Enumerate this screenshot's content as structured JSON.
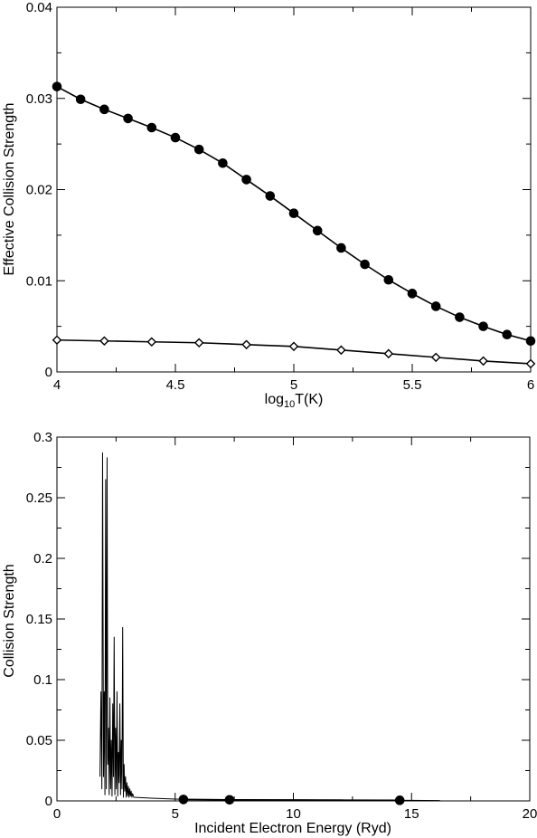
{
  "chart_data": [
    {
      "type": "line",
      "title": "",
      "xlabel": "log",
      "xlabel_sub": "10",
      "xlabel_suffix": "T(K)",
      "ylabel": "Effective Collision Strength",
      "xlim": [
        4,
        6
      ],
      "ylim": [
        0,
        0.04
      ],
      "x_ticks": [
        4,
        4.5,
        5,
        5.5,
        6
      ],
      "x_tick_labels": [
        "4",
        "4.5",
        "5",
        "5.5",
        "6"
      ],
      "y_ticks": [
        0,
        0.01,
        0.02,
        0.03,
        0.04
      ],
      "y_tick_labels": [
        "0",
        "0.01",
        "0.02",
        "0.03",
        "0.04"
      ],
      "grid": false,
      "series": [
        {
          "marker": "filled-circle",
          "x": [
            4.0,
            4.1,
            4.2,
            4.3,
            4.4,
            4.5,
            4.6,
            4.7,
            4.8,
            4.9,
            5.0,
            5.1,
            5.2,
            5.3,
            5.4,
            5.5,
            5.6,
            5.7,
            5.8,
            5.9,
            6.0
          ],
          "values": [
            0.0313,
            0.0299,
            0.0288,
            0.0278,
            0.0268,
            0.0257,
            0.0244,
            0.0229,
            0.0211,
            0.0193,
            0.0174,
            0.0155,
            0.0136,
            0.0118,
            0.0101,
            0.0086,
            0.0072,
            0.006,
            0.005,
            0.0041,
            0.0034
          ]
        },
        {
          "marker": "open-diamond",
          "x": [
            4.0,
            4.2,
            4.4,
            4.6,
            4.8,
            5.0,
            5.2,
            5.4,
            5.6,
            5.8,
            6.0
          ],
          "values": [
            0.0035,
            0.0034,
            0.0033,
            0.0032,
            0.003,
            0.0028,
            0.0024,
            0.002,
            0.0016,
            0.0012,
            0.0009
          ]
        }
      ]
    },
    {
      "type": "line",
      "title": "",
      "xlabel": "Incident Electron Energy (Ryd)",
      "ylabel": "Collision Strength",
      "xlim": [
        0,
        20
      ],
      "ylim": [
        0,
        0.3
      ],
      "x_ticks": [
        0,
        5,
        10,
        15,
        20
      ],
      "x_tick_labels": [
        "0",
        "5",
        "10",
        "15",
        "20"
      ],
      "y_ticks": [
        0,
        0.05,
        0.1,
        0.15,
        0.2,
        0.25,
        0.3
      ],
      "y_tick_labels": [
        "0",
        "0.05",
        "0.1",
        "0.15",
        "0.2",
        "0.25",
        "0.3"
      ],
      "grid": false,
      "series": [
        {
          "marker": "none",
          "x": [
            1.82,
            1.86,
            1.9,
            1.93,
            1.97,
            2.0,
            2.03,
            2.06,
            2.09,
            2.12,
            2.15,
            2.18,
            2.21,
            2.24,
            2.27,
            2.3,
            2.33,
            2.36,
            2.39,
            2.42,
            2.45,
            2.48,
            2.51,
            2.54,
            2.57,
            2.6,
            2.63,
            2.66,
            2.69,
            2.72,
            2.75,
            2.78,
            2.81,
            2.84,
            2.87,
            2.9,
            2.93,
            2.96,
            2.99,
            3.02,
            3.05,
            3.08,
            3.11,
            3.14,
            3.17,
            3.2,
            3.25,
            4.0,
            5.0,
            6.0,
            7.0,
            8.0,
            9.0,
            10.0,
            11.0,
            12.0,
            13.0,
            14.0,
            15.0,
            16.2
          ],
          "values": [
            0.02,
            0.09,
            0.01,
            0.287,
            0.02,
            0.09,
            0.005,
            0.265,
            0.01,
            0.283,
            0.03,
            0.06,
            0.005,
            0.085,
            0.01,
            0.05,
            0.004,
            0.08,
            0.02,
            0.135,
            0.005,
            0.06,
            0.01,
            0.09,
            0.004,
            0.04,
            0.015,
            0.08,
            0.005,
            0.05,
            0.01,
            0.143,
            0.003,
            0.03,
            0.008,
            0.02,
            0.003,
            0.015,
            0.004,
            0.012,
            0.003,
            0.01,
            0.004,
            0.008,
            0.003,
            0.006,
            0.003,
            0.0022,
            0.0015,
            0.0012,
            0.0011,
            0.001,
            0.0009,
            0.0009,
            0.0008,
            0.0008,
            0.0007,
            0.0006,
            0.0005,
            0.0003
          ]
        },
        {
          "marker": "filled-circle",
          "x": [
            5.35,
            7.3,
            14.5
          ],
          "values": [
            0.0012,
            0.0009,
            0.0005
          ]
        }
      ]
    }
  ]
}
